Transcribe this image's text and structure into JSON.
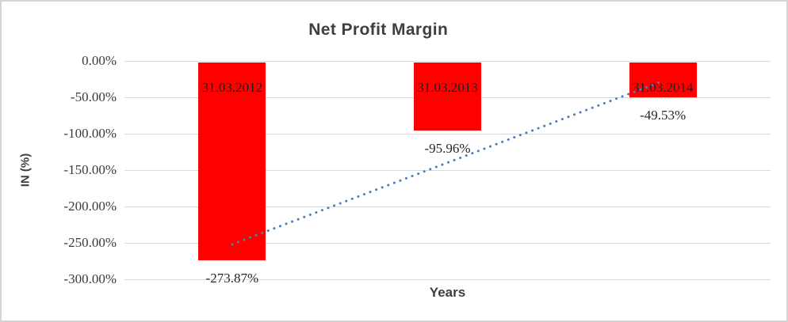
{
  "chart_data": {
    "type": "bar",
    "title": "Net Profit Margin",
    "xlabel": "Years",
    "ylabel": "IN (%)",
    "categories": [
      "31.03.2012",
      "31.03.2013",
      "31.03.2014"
    ],
    "values": [
      -273.87,
      -95.96,
      -49.53
    ],
    "value_labels": [
      "-273.87%",
      "-95.96%",
      "-49.53%"
    ],
    "y_ticks": [
      "0.00%",
      "-50.00%",
      "-100.00%",
      "-150.00%",
      "-200.00%",
      "-250.00%",
      "-300.00%"
    ],
    "ylim": [
      -300,
      0
    ],
    "grid": true,
    "legend": "none",
    "bar_color": "#ff0000",
    "trendline": {
      "type": "linear",
      "style": "dotted",
      "color": "#4a7ebb",
      "fitted_values": [
        -251.96,
        -139.79,
        -27.62
      ]
    },
    "frame_border_color": "#d4d4d4",
    "gridline_color": "#d9d9d9",
    "title_color": "#3f3f3f"
  }
}
